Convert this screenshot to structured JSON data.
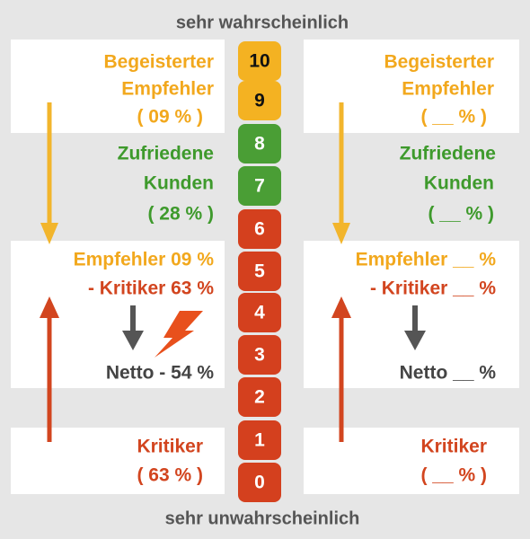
{
  "top_label": "sehr wahrscheinlich",
  "bottom_label": "sehr unwahrscheinlich",
  "scale": [
    "10",
    "9",
    "8",
    "7",
    "6",
    "5",
    "4",
    "3",
    "2",
    "1",
    "0"
  ],
  "left": {
    "promoters": [
      "Begeisterter",
      "Empfehler",
      "( 09 % )"
    ],
    "passives": [
      "Zufriedene",
      "Kunden",
      "( 28 % )"
    ],
    "calc": [
      "Empfehler 09 %",
      "- Kritiker 63 %",
      "Netto - 54 %"
    ],
    "detractors": [
      "Kritiker",
      "( 63 % )"
    ]
  },
  "right": {
    "promoters": [
      "Begeisterter",
      "Empfehler",
      "( __ % )"
    ],
    "passives": [
      "Zufriedene",
      "Kunden",
      "( __ % )"
    ],
    "calc": [
      "Empfehler __ %",
      "- Kritiker __ %",
      "Netto __ %"
    ],
    "detractors": [
      "Kritiker",
      "( __ % )"
    ]
  }
}
